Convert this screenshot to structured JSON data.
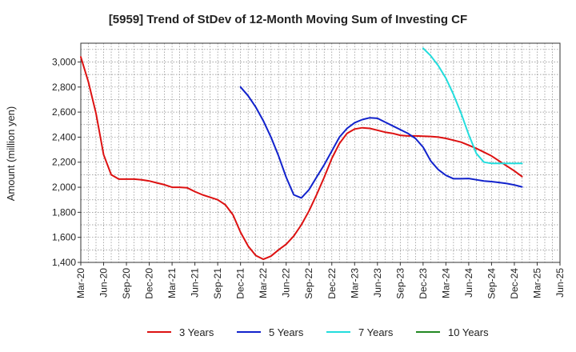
{
  "chart_data": {
    "type": "line",
    "title": "[5959]  Trend of StDev of 12-Month Moving Sum of Investing CF",
    "xlabel": "",
    "ylabel": "Amount (million yen)",
    "ylim": [
      1400,
      3150
    ],
    "yticks": [
      1400,
      1600,
      1800,
      2000,
      2200,
      2400,
      2600,
      2800,
      3000
    ],
    "ytick_labels": [
      "1,400",
      "1,600",
      "1,800",
      "2,000",
      "2,200",
      "2,400",
      "2,600",
      "2,800",
      "3,000"
    ],
    "x_start": "2020-03",
    "x_end": "2025-06",
    "xtick_labels": [
      "Mar-20",
      "Jun-20",
      "Sep-20",
      "Dec-20",
      "Mar-21",
      "Jun-21",
      "Sep-21",
      "Dec-21",
      "Mar-22",
      "Jun-22",
      "Sep-22",
      "Dec-22",
      "Mar-23",
      "Jun-23",
      "Sep-23",
      "Dec-23",
      "Mar-24",
      "Jun-24",
      "Sep-24",
      "Dec-24",
      "Mar-25",
      "Jun-25"
    ],
    "grid": true,
    "legend_position": "bottom",
    "series": [
      {
        "name": "3 Years",
        "color": "#dd1111",
        "points": [
          [
            "2020-03",
            3040
          ],
          [
            "2020-04",
            2840
          ],
          [
            "2020-05",
            2590
          ],
          [
            "2020-06",
            2260
          ],
          [
            "2020-07",
            2100
          ],
          [
            "2020-08",
            2065
          ],
          [
            "2020-09",
            2065
          ],
          [
            "2020-10",
            2065
          ],
          [
            "2020-11",
            2060
          ],
          [
            "2020-12",
            2050
          ],
          [
            "2021-01",
            2035
          ],
          [
            "2021-02",
            2020
          ],
          [
            "2021-03",
            2000
          ],
          [
            "2021-04",
            2000
          ],
          [
            "2021-05",
            1995
          ],
          [
            "2021-06",
            1965
          ],
          [
            "2021-07",
            1940
          ],
          [
            "2021-08",
            1920
          ],
          [
            "2021-09",
            1900
          ],
          [
            "2021-10",
            1860
          ],
          [
            "2021-11",
            1780
          ],
          [
            "2021-12",
            1640
          ],
          [
            "2022-01",
            1530
          ],
          [
            "2022-02",
            1455
          ],
          [
            "2022-03",
            1425
          ],
          [
            "2022-04",
            1450
          ],
          [
            "2022-05",
            1500
          ],
          [
            "2022-06",
            1545
          ],
          [
            "2022-07",
            1610
          ],
          [
            "2022-08",
            1700
          ],
          [
            "2022-09",
            1810
          ],
          [
            "2022-10",
            1940
          ],
          [
            "2022-11",
            2080
          ],
          [
            "2022-12",
            2230
          ],
          [
            "2023-01",
            2350
          ],
          [
            "2023-02",
            2430
          ],
          [
            "2023-03",
            2465
          ],
          [
            "2023-04",
            2475
          ],
          [
            "2023-05",
            2470
          ],
          [
            "2023-06",
            2455
          ],
          [
            "2023-07",
            2440
          ],
          [
            "2023-08",
            2430
          ],
          [
            "2023-09",
            2415
          ],
          [
            "2023-10",
            2410
          ],
          [
            "2023-11",
            2410
          ],
          [
            "2023-12",
            2408
          ],
          [
            "2024-01",
            2405
          ],
          [
            "2024-02",
            2400
          ],
          [
            "2024-03",
            2390
          ],
          [
            "2024-04",
            2375
          ],
          [
            "2024-05",
            2360
          ],
          [
            "2024-06",
            2335
          ],
          [
            "2024-07",
            2310
          ],
          [
            "2024-08",
            2280
          ],
          [
            "2024-09",
            2250
          ],
          [
            "2024-10",
            2210
          ],
          [
            "2024-11",
            2170
          ],
          [
            "2024-12",
            2130
          ],
          [
            "2025-01",
            2085
          ]
        ]
      },
      {
        "name": "5 Years",
        "color": "#1122cc",
        "points": [
          [
            "2021-12",
            2800
          ],
          [
            "2022-01",
            2730
          ],
          [
            "2022-02",
            2640
          ],
          [
            "2022-03",
            2530
          ],
          [
            "2022-04",
            2400
          ],
          [
            "2022-05",
            2250
          ],
          [
            "2022-06",
            2080
          ],
          [
            "2022-07",
            1940
          ],
          [
            "2022-08",
            1915
          ],
          [
            "2022-09",
            1980
          ],
          [
            "2022-10",
            2080
          ],
          [
            "2022-11",
            2180
          ],
          [
            "2022-12",
            2290
          ],
          [
            "2023-01",
            2400
          ],
          [
            "2023-02",
            2470
          ],
          [
            "2023-03",
            2515
          ],
          [
            "2023-04",
            2540
          ],
          [
            "2023-05",
            2555
          ],
          [
            "2023-06",
            2550
          ],
          [
            "2023-07",
            2520
          ],
          [
            "2023-08",
            2490
          ],
          [
            "2023-09",
            2460
          ],
          [
            "2023-10",
            2430
          ],
          [
            "2023-11",
            2390
          ],
          [
            "2023-12",
            2320
          ],
          [
            "2024-01",
            2210
          ],
          [
            "2024-02",
            2140
          ],
          [
            "2024-03",
            2095
          ],
          [
            "2024-04",
            2068
          ],
          [
            "2024-05",
            2068
          ],
          [
            "2024-06",
            2070
          ],
          [
            "2024-07",
            2060
          ],
          [
            "2024-08",
            2050
          ],
          [
            "2024-09",
            2045
          ],
          [
            "2024-10",
            2038
          ],
          [
            "2024-11",
            2030
          ],
          [
            "2024-12",
            2018
          ],
          [
            "2025-01",
            2003
          ]
        ]
      },
      {
        "name": "7 Years",
        "color": "#22dddd",
        "points": [
          [
            "2023-12",
            3110
          ],
          [
            "2024-01",
            3050
          ],
          [
            "2024-02",
            2970
          ],
          [
            "2024-03",
            2870
          ],
          [
            "2024-04",
            2740
          ],
          [
            "2024-05",
            2590
          ],
          [
            "2024-06",
            2420
          ],
          [
            "2024-07",
            2270
          ],
          [
            "2024-08",
            2200
          ],
          [
            "2024-09",
            2190
          ],
          [
            "2024-10",
            2190
          ],
          [
            "2024-11",
            2190
          ],
          [
            "2024-12",
            2190
          ],
          [
            "2025-01",
            2190
          ]
        ]
      },
      {
        "name": "10 Years",
        "color": "#228822",
        "points": []
      }
    ]
  }
}
